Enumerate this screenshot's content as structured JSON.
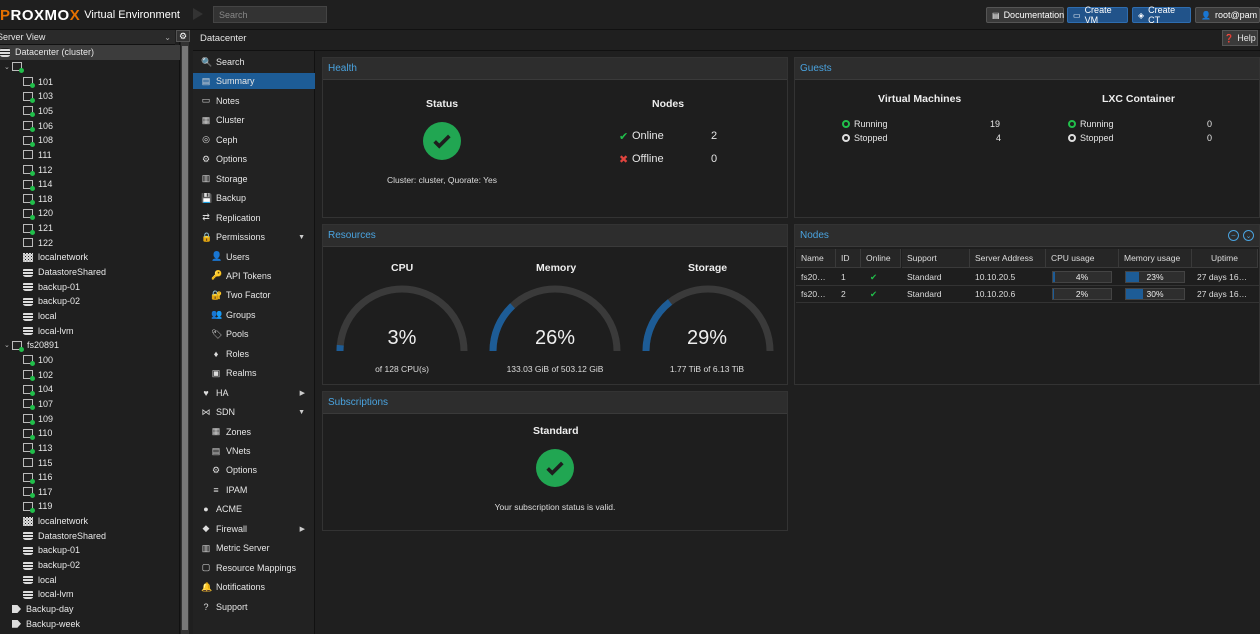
{
  "header": {
    "logo": "PROXMOX",
    "product": "Virtual Environment",
    "search_placeholder": "Search",
    "documentation": "Documentation",
    "create_vm": "Create VM",
    "create_ct": "Create CT",
    "user": "root@pam"
  },
  "tree": {
    "view": "Server View",
    "root": "Datacenter (cluster)",
    "node1_items": [
      "101",
      "103",
      "105",
      "106",
      "108",
      "111",
      "112",
      "114",
      "118",
      "120",
      "121",
      "122",
      "localnetwork",
      "DatastoreShared",
      "backup-01",
      "backup-02",
      "local",
      "local-lvm"
    ],
    "node2": "fs20891",
    "node2_items": [
      "100",
      "102",
      "104",
      "107",
      "109",
      "110",
      "113",
      "115",
      "116",
      "117",
      "119",
      "localnetwork",
      "DatastoreShared",
      "backup-01",
      "backup-02",
      "local",
      "local-lvm"
    ],
    "tags": [
      "Backup-day",
      "Backup-week"
    ]
  },
  "breadcrumb": "Datacenter",
  "help": "Help",
  "menu": [
    "Search",
    "Summary",
    "Notes",
    "Cluster",
    "Ceph",
    "Options",
    "Storage",
    "Backup",
    "Replication",
    "Permissions",
    "Users",
    "API Tokens",
    "Two Factor",
    "Groups",
    "Pools",
    "Roles",
    "Realms",
    "HA",
    "SDN",
    "Zones",
    "VNets",
    "Options",
    "IPAM",
    "ACME",
    "Firewall",
    "Metric Server",
    "Resource Mappings",
    "Notifications",
    "Support"
  ],
  "health": {
    "title": "Health",
    "status_label": "Status",
    "nodes_label": "Nodes",
    "online_label": "Online",
    "online_count": "2",
    "offline_label": "Offline",
    "offline_count": "0",
    "cluster_text": "Cluster: cluster, Quorate: Yes"
  },
  "guests": {
    "title": "Guests",
    "vm_label": "Virtual Machines",
    "lxc_label": "LXC Container",
    "running": "Running",
    "stopped": "Stopped",
    "vm_running": "19",
    "vm_stopped": "4",
    "lxc_running": "0",
    "lxc_stopped": "0"
  },
  "resources": {
    "title": "Resources",
    "cpu": {
      "label": "CPU",
      "percent": "3%",
      "value": 3,
      "detail": "of 128 CPU(s)"
    },
    "memory": {
      "label": "Memory",
      "percent": "26%",
      "value": 26,
      "detail": "133.03 GiB of 503.12 GiB"
    },
    "storage": {
      "label": "Storage",
      "percent": "29%",
      "value": 29,
      "detail": "1.77 TiB of 6.13 TiB"
    }
  },
  "nodes": {
    "title": "Nodes",
    "columns": [
      "Name",
      "ID",
      "Online",
      "Support",
      "Server Address",
      "CPU usage",
      "Memory usage",
      "Uptime"
    ],
    "rows": [
      {
        "name": "fs20…",
        "id": "1",
        "support": "Standard",
        "address": "10.10.20.5",
        "cpu": "4%",
        "cpu_v": 4,
        "mem": "23%",
        "mem_v": 23,
        "uptime": "27 days 16…"
      },
      {
        "name": "fs20…",
        "id": "2",
        "support": "Standard",
        "address": "10.10.20.6",
        "cpu": "2%",
        "cpu_v": 2,
        "mem": "30%",
        "mem_v": 30,
        "uptime": "27 days 16…"
      }
    ]
  },
  "subscriptions": {
    "title": "Subscriptions",
    "level": "Standard",
    "text": "Your subscription status is valid."
  },
  "colors": {
    "accent": "#1d5c96",
    "ok": "#21a652",
    "error": "#e0443e",
    "title": "#4aa3df"
  }
}
